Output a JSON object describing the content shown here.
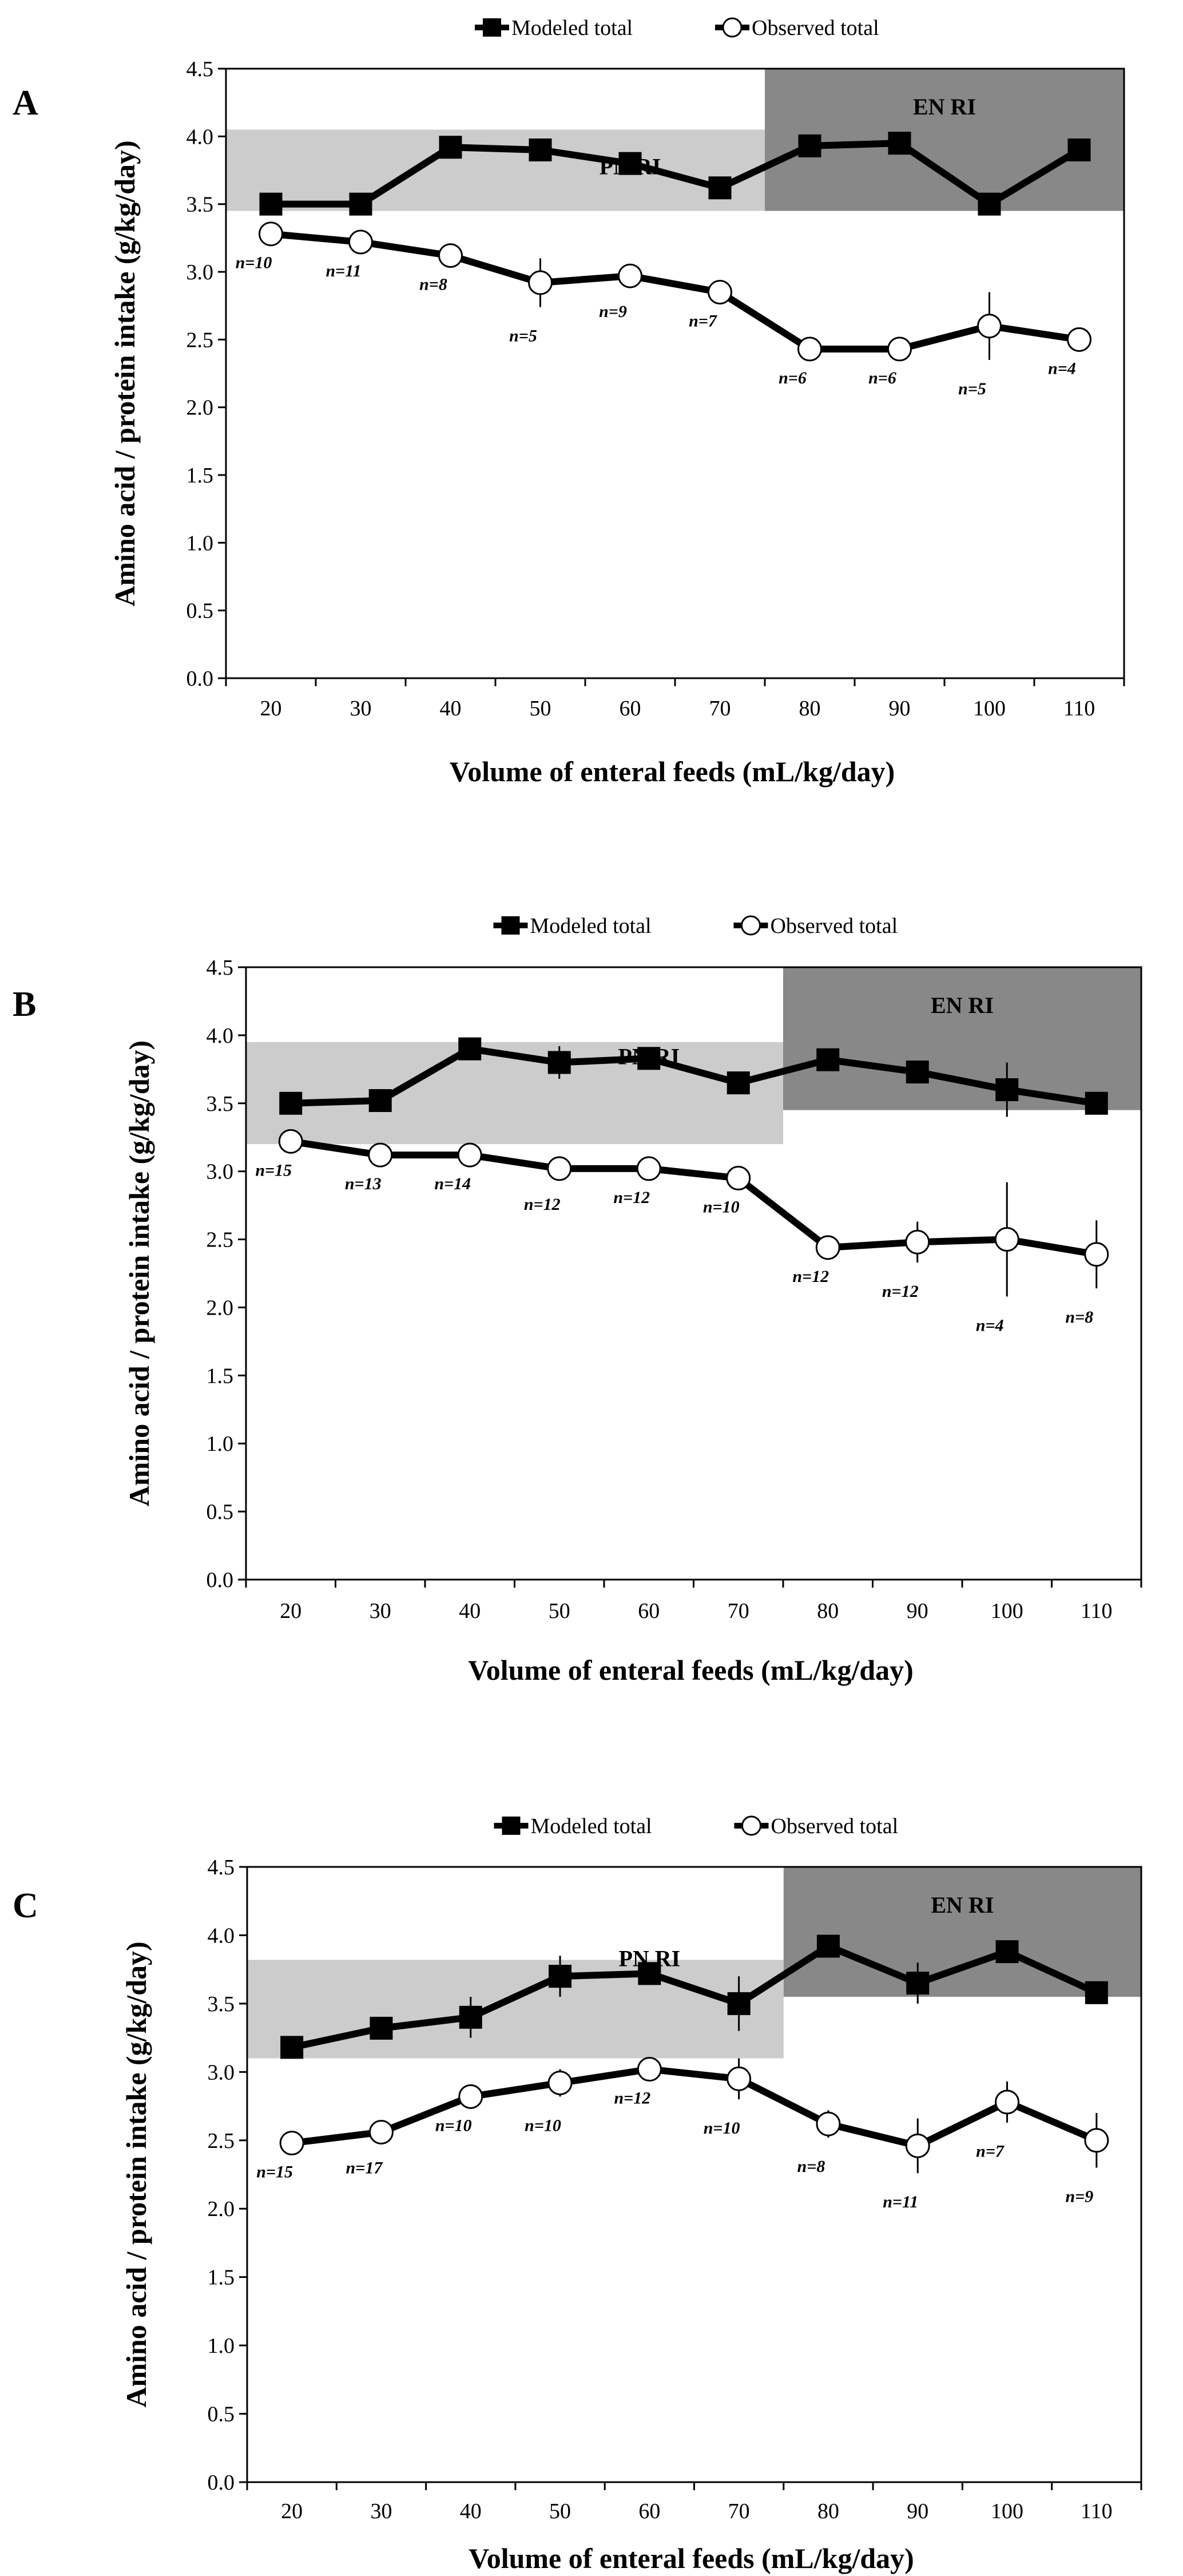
{
  "chart_data": [
    {
      "panel_label": "A",
      "type": "line",
      "legend": {
        "modeled": "Modeled total",
        "observed": "Observed total",
        "position": "top-center"
      },
      "xlabel": "Volume of enteral feeds (mL/kg/day)",
      "ylabel": "Amino acid / protein intake (g/kg/day)",
      "categories": [
        20,
        30,
        40,
        50,
        60,
        70,
        80,
        90,
        100,
        110
      ],
      "ylim": [
        0,
        4.5
      ],
      "yticks": [
        "0.0",
        "0.5",
        "1.0",
        "1.5",
        "2.0",
        "2.5",
        "3.0",
        "3.5",
        "4.0",
        "4.5"
      ],
      "series": [
        {
          "name": "Modeled total",
          "marker": "filled-square",
          "values": [
            3.5,
            3.5,
            3.92,
            3.9,
            3.8,
            3.62,
            3.93,
            3.95,
            3.5,
            3.9
          ],
          "errors": [
            0,
            0,
            0,
            0.05,
            0,
            0,
            0,
            0.08,
            0,
            0
          ]
        },
        {
          "name": "Observed total",
          "marker": "open-circle",
          "values": [
            3.28,
            3.22,
            3.12,
            2.92,
            2.97,
            2.85,
            2.43,
            2.43,
            2.6,
            2.5
          ],
          "errors": [
            0,
            0,
            0,
            0.18,
            0.05,
            0,
            0,
            0,
            0.25,
            0
          ],
          "n_labels": [
            "n=10",
            "n=11",
            "n=8",
            "n=5",
            "n=9",
            "n=7",
            "n=6",
            "n=6",
            "n=5",
            "n=4"
          ]
        }
      ],
      "reference_bands": [
        {
          "label": "PN RI",
          "x_from": 15,
          "x_to": 75,
          "y_from": 3.45,
          "y_to": 4.05,
          "color": "#cccccc"
        },
        {
          "label": "EN RI",
          "x_from": 75,
          "x_to": 115,
          "y_from": 3.45,
          "y_to": 4.5,
          "color": "#888888"
        }
      ]
    },
    {
      "panel_label": "B",
      "type": "line",
      "legend": {
        "modeled": "Modeled total",
        "observed": "Observed total",
        "position": "top-center"
      },
      "xlabel": "Volume of enteral feeds (mL/kg/day)",
      "ylabel": "Amino acid / protein intake (g/kg/day)",
      "categories": [
        20,
        30,
        40,
        50,
        60,
        70,
        80,
        90,
        100,
        110
      ],
      "ylim": [
        0,
        4.5
      ],
      "yticks": [
        "0.0",
        "0.5",
        "1.0",
        "1.5",
        "2.0",
        "2.5",
        "3.0",
        "3.5",
        "4.0",
        "4.5"
      ],
      "series": [
        {
          "name": "Modeled total",
          "marker": "filled-square",
          "values": [
            3.5,
            3.52,
            3.9,
            3.8,
            3.83,
            3.65,
            3.82,
            3.73,
            3.6,
            3.5
          ],
          "errors": [
            0,
            0,
            0,
            0.12,
            0,
            0,
            0.08,
            0,
            0.2,
            0
          ]
        },
        {
          "name": "Observed total",
          "marker": "open-circle",
          "values": [
            3.22,
            3.12,
            3.12,
            3.02,
            3.02,
            2.95,
            2.44,
            2.48,
            2.5,
            2.39
          ],
          "errors": [
            0,
            0,
            0,
            0.05,
            0,
            0,
            0,
            0.15,
            0.42,
            0.25
          ],
          "n_labels": [
            "n=15",
            "n=13",
            "n=14",
            "n=12",
            "n=12",
            "n=10",
            "n=12",
            "n=12",
            "n=4",
            "n=8"
          ]
        }
      ],
      "reference_bands": [
        {
          "label": "PN RI",
          "x_from": 15,
          "x_to": 75,
          "y_from": 3.2,
          "y_to": 3.95,
          "color": "#cccccc"
        },
        {
          "label": "EN RI",
          "x_from": 75,
          "x_to": 115,
          "y_from": 3.45,
          "y_to": 4.5,
          "color": "#888888"
        }
      ]
    },
    {
      "panel_label": "C",
      "type": "line",
      "legend": {
        "modeled": "Modeled total",
        "observed": "Observed total",
        "position": "top-center"
      },
      "xlabel": "Volume of enteral feeds (mL/kg/day)",
      "ylabel": "Amino acid / protein intake (g/kg/day)",
      "categories": [
        20,
        30,
        40,
        50,
        60,
        70,
        80,
        90,
        100,
        110
      ],
      "ylim": [
        0,
        4.5
      ],
      "yticks": [
        "0.0",
        "0.5",
        "1.0",
        "1.5",
        "2.0",
        "2.5",
        "3.0",
        "3.5",
        "4.0",
        "4.5"
      ],
      "series": [
        {
          "name": "Modeled total",
          "marker": "filled-square",
          "values": [
            3.18,
            3.32,
            3.4,
            3.7,
            3.72,
            3.5,
            3.92,
            3.65,
            3.88,
            3.58
          ],
          "errors": [
            0,
            0,
            0.15,
            0.15,
            0,
            0.2,
            0,
            0.15,
            0,
            0
          ]
        },
        {
          "name": "Observed total",
          "marker": "open-circle",
          "values": [
            2.48,
            2.56,
            2.82,
            2.92,
            3.02,
            2.95,
            2.62,
            2.46,
            2.78,
            2.5
          ],
          "errors": [
            0,
            0.05,
            0,
            0.1,
            0,
            0.15,
            0.1,
            0.2,
            0.15,
            0.2
          ],
          "n_labels": [
            "n=15",
            "n=17",
            "n=10",
            "n=10",
            "n=12",
            "n=10",
            "n=8",
            "n=11",
            "n=7",
            "n=9"
          ]
        }
      ],
      "reference_bands": [
        {
          "label": "PN RI",
          "x_from": 15,
          "x_to": 75,
          "y_from": 3.1,
          "y_to": 3.82,
          "color": "#cccccc"
        },
        {
          "label": "EN RI",
          "x_from": 75,
          "x_to": 115,
          "y_from": 3.55,
          "y_to": 4.5,
          "color": "#888888"
        }
      ]
    }
  ]
}
